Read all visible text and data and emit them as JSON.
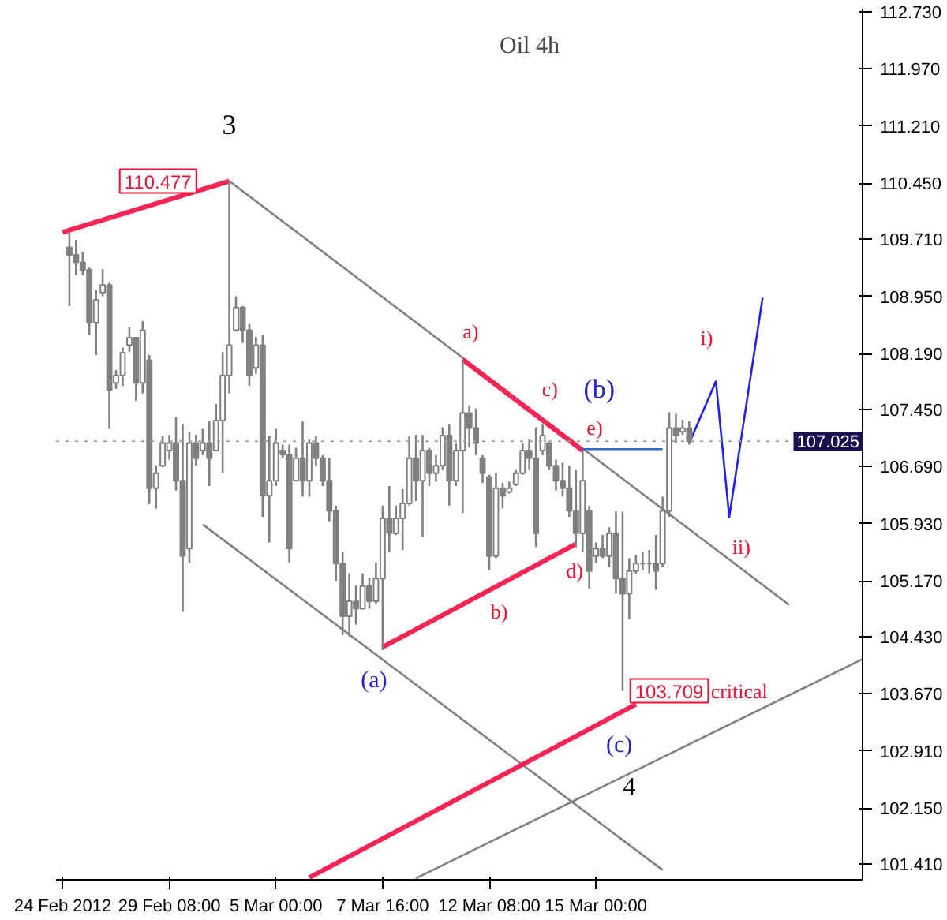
{
  "chart_data": {
    "type": "candlestick",
    "title": "Oil 4h",
    "categories": [
      "24 Feb 2012",
      null,
      null,
      null,
      null,
      null,
      null,
      null,
      null,
      null,
      null,
      null,
      null,
      null,
      null,
      null,
      "29 Feb 08:00",
      null,
      null,
      null,
      null,
      null,
      null,
      null,
      null,
      null,
      null,
      null,
      null,
      null,
      null,
      null,
      "5 Mar 00:00",
      null,
      null,
      null,
      null,
      null,
      null,
      null,
      null,
      null,
      null,
      null,
      null,
      null,
      null,
      null,
      "7 Mar 16:00",
      null,
      null,
      null,
      null,
      null,
      null,
      null,
      null,
      null,
      null,
      null,
      null,
      null,
      null,
      null,
      "12 Mar 08:00",
      null,
      null,
      null,
      null,
      null,
      null,
      null,
      null,
      null,
      null,
      null,
      null,
      null,
      null,
      null,
      "15 Mar 00:00",
      null,
      null,
      null,
      null,
      null,
      null,
      null,
      null,
      null,
      null,
      null,
      null,
      null,
      null,
      null,
      null,
      null,
      null,
      null,
      null,
      null,
      null,
      null,
      null,
      null,
      null,
      null,
      null,
      null,
      null,
      null,
      null,
      null,
      null,
      null,
      null,
      null,
      null,
      null,
      null
    ],
    "ylim": [
      101.2,
      112.77
    ],
    "yticks": [
      {
        "value": 112.73,
        "label": "112.730"
      },
      {
        "value": 111.97,
        "label": "111.970"
      },
      {
        "value": 111.21,
        "label": "111.210"
      },
      {
        "value": 110.45,
        "label": "110.450"
      },
      {
        "value": 109.71,
        "label": "109.710"
      },
      {
        "value": 108.95,
        "label": "108.950"
      },
      {
        "value": 108.19,
        "label": "108.190"
      },
      {
        "value": 107.45,
        "label": "107.450"
      },
      {
        "value": 106.69,
        "label": "106.690"
      },
      {
        "value": 105.93,
        "label": "105.930"
      },
      {
        "value": 105.17,
        "label": "105.170"
      },
      {
        "value": 104.43,
        "label": "104.430"
      },
      {
        "value": 103.67,
        "label": "103.670"
      },
      {
        "value": 102.91,
        "label": "102.910"
      },
      {
        "value": 102.15,
        "label": "102.150"
      },
      {
        "value": 101.41,
        "label": "101.410"
      }
    ],
    "grid": false,
    "ref_lines": [
      {
        "axis": "y",
        "value": 107.025,
        "label": "107.025",
        "color": "#a0a0a0",
        "line_style": "dotted"
      }
    ],
    "series": [
      {
        "type": "line",
        "color": "#ff2255",
        "values": [
          109.8,
          null,
          null,
          null,
          null,
          null,
          null,
          null,
          null,
          null,
          null,
          null,
          null,
          null,
          null,
          null,
          null,
          null,
          null,
          null,
          null,
          null,
          null,
          null,
          null,
          110.48,
          null,
          null,
          null,
          null,
          null,
          null,
          null,
          null,
          null,
          null,
          null,
          null,
          null,
          null,
          null,
          null,
          null,
          null,
          null,
          null,
          null,
          null,
          null,
          null,
          null,
          null,
          null,
          null,
          null,
          null,
          null,
          null,
          null,
          null,
          null,
          null,
          null,
          null,
          null,
          null,
          null,
          null,
          null,
          null,
          null,
          null,
          null,
          null,
          null,
          null,
          null,
          null,
          null,
          null,
          null,
          null,
          null,
          null,
          null,
          null,
          null,
          null,
          null,
          null,
          null,
          null,
          null,
          null,
          null,
          null,
          null,
          null,
          null,
          null,
          null,
          null,
          null,
          null,
          null,
          null,
          null,
          null,
          null,
          null,
          null,
          null,
          null,
          null,
          null,
          null,
          null,
          null,
          null,
          null,
          null
        ]
      },
      {
        "type": "line",
        "color": "#808080",
        "values": [
          null,
          null,
          null,
          null,
          null,
          null,
          null,
          null,
          null,
          null,
          null,
          null,
          null,
          null,
          null,
          null,
          null,
          null,
          null,
          null,
          null,
          null,
          null,
          null,
          null,
          110.48,
          null,
          null,
          null,
          null,
          null,
          null,
          null,
          null,
          null,
          null,
          null,
          null,
          null,
          null,
          null,
          null,
          null,
          null,
          null,
          null,
          null,
          null,
          null,
          null,
          null,
          null,
          null,
          null,
          null,
          null,
          null,
          null,
          null,
          null,
          null,
          null,
          null,
          null,
          null,
          null,
          null,
          null,
          null,
          null,
          null,
          null,
          null,
          null,
          null,
          null,
          null,
          null,
          null,
          null,
          null,
          null,
          null,
          null,
          null,
          null,
          null,
          null,
          null,
          null,
          null,
          null,
          null,
          null,
          null,
          null,
          null,
          null,
          null,
          null,
          null,
          null,
          null,
          null,
          null,
          null,
          null,
          null,
          null,
          104.85,
          null,
          null,
          null,
          null,
          null,
          null,
          null,
          null,
          null,
          null,
          null
        ]
      },
      {
        "type": "line",
        "color": "#ff2255",
        "values": [
          null,
          null,
          null,
          null,
          null,
          null,
          null,
          null,
          null,
          null,
          null,
          null,
          null,
          null,
          null,
          null,
          null,
          null,
          null,
          null,
          null,
          null,
          null,
          null,
          null,
          null,
          null,
          null,
          null,
          null,
          null,
          null,
          null,
          null,
          null,
          null,
          null,
          null,
          null,
          null,
          null,
          null,
          null,
          null,
          null,
          null,
          null,
          null,
          null,
          null,
          null,
          null,
          null,
          null,
          null,
          null,
          null,
          null,
          null,
          null,
          108.11,
          null,
          null,
          null,
          null,
          null,
          null,
          null,
          null,
          null,
          null,
          null,
          null,
          null,
          null,
          null,
          null,
          null,
          106.9,
          null,
          null,
          null,
          null,
          null,
          null,
          null,
          null,
          null,
          null,
          null,
          null,
          null,
          null,
          null,
          null,
          null,
          null,
          null,
          null,
          null,
          null,
          null,
          null,
          null,
          null,
          null,
          null,
          null,
          null,
          null,
          null,
          null,
          null,
          null,
          null,
          null,
          null,
          null,
          null,
          null,
          null
        ]
      },
      {
        "type": "line",
        "color": "#3366cc",
        "values": [
          null,
          null,
          null,
          null,
          null,
          null,
          null,
          null,
          null,
          null,
          null,
          null,
          null,
          null,
          null,
          null,
          null,
          null,
          null,
          null,
          null,
          null,
          null,
          null,
          null,
          null,
          null,
          null,
          null,
          null,
          null,
          null,
          null,
          null,
          null,
          null,
          null,
          null,
          null,
          null,
          null,
          null,
          null,
          null,
          null,
          null,
          null,
          null,
          null,
          null,
          null,
          null,
          null,
          null,
          null,
          null,
          null,
          null,
          null,
          null,
          null,
          null,
          null,
          null,
          null,
          null,
          null,
          null,
          null,
          null,
          null,
          null,
          null,
          null,
          null,
          null,
          null,
          null,
          106.92,
          null,
          null,
          null,
          null,
          null,
          null,
          null,
          null,
          null,
          null,
          null,
          106.92,
          null,
          null,
          null,
          null,
          null,
          null,
          null,
          null,
          null,
          null,
          null,
          null,
          null,
          null,
          null,
          null,
          null,
          null,
          null,
          null,
          null,
          null,
          null,
          null,
          null,
          null,
          null,
          null,
          null,
          null
        ]
      },
      {
        "type": "line",
        "color": "#808080",
        "values": [
          null,
          null,
          null,
          null,
          null,
          null,
          null,
          null,
          null,
          null,
          null,
          null,
          null,
          null,
          null,
          null,
          null,
          null,
          null,
          null,
          null,
          105.92,
          null,
          null,
          null,
          null,
          null,
          null,
          null,
          null,
          null,
          null,
          null,
          null,
          null,
          null,
          null,
          null,
          null,
          null,
          null,
          null,
          null,
          null,
          null,
          null,
          null,
          null,
          null,
          null,
          null,
          null,
          null,
          null,
          null,
          null,
          null,
          null,
          null,
          null,
          null,
          null,
          null,
          null,
          null,
          null,
          null,
          null,
          null,
          null,
          null,
          null,
          null,
          null,
          null,
          null,
          null,
          null,
          null,
          null,
          null,
          null,
          null,
          null,
          null,
          null,
          null,
          null,
          null,
          null,
          101.33,
          null,
          null,
          null,
          null,
          null,
          null,
          null,
          null,
          null,
          null,
          null,
          null,
          null,
          null,
          null,
          null,
          null,
          null,
          null,
          null,
          null,
          null,
          null,
          null,
          null,
          null,
          null,
          null,
          null,
          null
        ]
      },
      {
        "type": "line",
        "color": "#ff2255",
        "values": [
          null,
          null,
          null,
          null,
          null,
          null,
          null,
          null,
          null,
          null,
          null,
          null,
          null,
          null,
          null,
          null,
          null,
          null,
          null,
          null,
          null,
          null,
          null,
          null,
          null,
          null,
          null,
          null,
          null,
          null,
          null,
          null,
          null,
          null,
          null,
          null,
          null,
          null,
          null,
          null,
          null,
          null,
          null,
          null,
          null,
          null,
          null,
          null,
          104.29,
          null,
          null,
          null,
          null,
          null,
          null,
          null,
          null,
          null,
          null,
          null,
          null,
          null,
          null,
          null,
          null,
          null,
          null,
          null,
          null,
          null,
          null,
          null,
          null,
          null,
          null,
          null,
          null,
          105.66,
          null,
          null,
          null,
          null,
          null,
          null,
          null,
          null,
          null,
          null,
          null,
          null,
          null,
          null,
          null,
          null,
          null,
          null,
          null,
          null,
          null,
          null,
          null,
          null,
          null,
          null,
          null,
          null,
          null,
          null,
          null,
          null,
          null,
          null,
          null,
          null,
          null,
          null,
          null,
          null,
          null,
          null,
          null
        ]
      },
      {
        "type": "line",
        "color": "#ff2255",
        "values": [
          null,
          null,
          null,
          null,
          null,
          null,
          null,
          null,
          null,
          null,
          null,
          null,
          null,
          null,
          null,
          null,
          null,
          null,
          null,
          null,
          null,
          null,
          null,
          null,
          null,
          null,
          null,
          null,
          null,
          null,
          null,
          null,
          null,
          null,
          null,
          null,
          null,
          101.23,
          null,
          null,
          null,
          null,
          null,
          null,
          null,
          null,
          null,
          null,
          null,
          null,
          null,
          null,
          null,
          null,
          null,
          null,
          null,
          null,
          null,
          null,
          null,
          null,
          null,
          null,
          null,
          null,
          null,
          null,
          null,
          null,
          null,
          null,
          null,
          null,
          null,
          null,
          null,
          null,
          null,
          null,
          null,
          null,
          null,
          null,
          null,
          null,
          103.53,
          null,
          null,
          null,
          null,
          null,
          null,
          null,
          null,
          null,
          null,
          null,
          null,
          null,
          null,
          null,
          null,
          null,
          null,
          null,
          null,
          null,
          null,
          null,
          null,
          null,
          null,
          null,
          null,
          null,
          null,
          null,
          null,
          null,
          null
        ]
      },
      {
        "type": "line",
        "color": "#808080",
        "values": [
          null,
          null,
          null,
          null,
          null,
          null,
          null,
          null,
          null,
          null,
          null,
          null,
          null,
          null,
          null,
          null,
          null,
          null,
          null,
          null,
          null,
          null,
          null,
          null,
          null,
          null,
          null,
          null,
          null,
          null,
          null,
          null,
          null,
          null,
          null,
          null,
          null,
          null,
          null,
          null,
          null,
          null,
          null,
          null,
          null,
          null,
          null,
          null,
          null,
          null,
          null,
          null,
          null,
          101.22,
          null,
          null,
          null,
          null,
          null,
          null,
          null,
          null,
          null,
          null,
          null,
          null,
          null,
          null,
          null,
          null,
          null,
          null,
          null,
          null,
          null,
          null,
          null,
          null,
          null,
          null,
          null,
          null,
          null,
          null,
          null,
          null,
          null,
          null,
          null,
          null,
          null,
          null,
          null,
          null,
          null,
          null,
          null,
          null,
          null,
          null,
          null,
          null,
          null,
          null,
          null,
          null,
          null,
          null,
          null,
          null,
          null,
          null,
          null,
          null,
          null,
          null,
          null,
          null,
          null,
          null,
          104.13
        ]
      },
      {
        "type": "line",
        "color": "#2222ee",
        "values": [
          null,
          null,
          null,
          null,
          null,
          null,
          null,
          null,
          null,
          null,
          null,
          null,
          null,
          null,
          null,
          null,
          null,
          null,
          null,
          null,
          null,
          null,
          null,
          null,
          null,
          null,
          null,
          null,
          null,
          null,
          null,
          null,
          null,
          null,
          null,
          null,
          null,
          null,
          null,
          null,
          null,
          null,
          null,
          null,
          null,
          null,
          null,
          null,
          null,
          null,
          null,
          null,
          null,
          null,
          null,
          null,
          null,
          null,
          null,
          null,
          null,
          null,
          null,
          null,
          null,
          null,
          null,
          null,
          null,
          null,
          null,
          null,
          null,
          null,
          null,
          null,
          null,
          null,
          null,
          null,
          null,
          null,
          null,
          null,
          null,
          null,
          null,
          null,
          null,
          null,
          null,
          null,
          null,
          null,
          107.0,
          null,
          null,
          null,
          107.82,
          null,
          106.02,
          null,
          null,
          null,
          null,
          108.93,
          null,
          null,
          null,
          null,
          null,
          null,
          null,
          null,
          null,
          null,
          null,
          null,
          null,
          null,
          null
        ]
      },
      {
        "color": "#808080",
        "ohlc": [
          null,
          [
            109.6,
            109.8,
            108.82,
            109.5
          ],
          [
            109.5,
            109.7,
            109.23,
            109.4
          ],
          [
            109.4,
            109.54,
            109.23,
            109.3
          ],
          [
            109.3,
            109.33,
            108.44,
            108.6
          ],
          [
            108.6,
            109.03,
            108.17,
            108.9
          ],
          [
            109.0,
            109.31,
            108.95,
            109.1
          ],
          [
            109.1,
            109.13,
            107.19,
            107.7
          ],
          [
            107.8,
            107.97,
            107.72,
            107.9
          ],
          [
            107.9,
            108.27,
            107.76,
            108.2
          ],
          [
            108.3,
            108.54,
            108.21,
            108.4
          ],
          [
            108.4,
            108.41,
            107.56,
            107.8
          ],
          [
            107.8,
            108.62,
            107.66,
            108.5
          ],
          [
            108.1,
            108.17,
            106.19,
            106.4
          ],
          [
            106.4,
            106.7,
            106.13,
            106.6
          ],
          [
            106.7,
            107.09,
            106.68,
            107.0
          ],
          [
            106.9,
            107.11,
            106.78,
            107.0
          ],
          [
            107.0,
            107.35,
            106.37,
            106.5
          ],
          [
            106.5,
            107.25,
            104.76,
            105.5
          ],
          [
            105.6,
            107.15,
            105.41,
            107.0
          ],
          [
            107.0,
            107.11,
            106.7,
            106.8
          ],
          [
            106.9,
            107.19,
            106.84,
            107.0
          ],
          [
            107.0,
            107.29,
            106.43,
            106.8
          ],
          [
            106.9,
            107.52,
            106.9,
            107.3
          ],
          [
            107.3,
            108.21,
            106.6,
            107.9
          ],
          [
            107.9,
            110.477,
            107.66,
            108.3
          ],
          [
            108.5,
            108.95,
            108.48,
            108.8
          ],
          [
            108.8,
            108.82,
            108.33,
            108.5
          ],
          [
            108.5,
            108.58,
            107.76,
            107.9
          ],
          [
            108.0,
            108.41,
            107.92,
            108.3
          ],
          [
            108.3,
            108.44,
            106.02,
            106.3
          ],
          [
            106.3,
            107.09,
            105.68,
            106.5
          ],
          [
            106.5,
            107.19,
            106.43,
            107.0
          ],
          [
            106.9,
            106.98,
            106.8,
            106.85
          ],
          [
            106.85,
            106.98,
            105.41,
            105.6
          ],
          [
            106.5,
            106.94,
            106.49,
            106.8
          ],
          [
            106.8,
            107.29,
            106.29,
            106.5
          ],
          [
            106.5,
            107.05,
            106.29,
            107.0
          ],
          [
            107.0,
            107.09,
            106.7,
            106.8
          ],
          [
            106.8,
            106.84,
            106.43,
            106.5
          ],
          [
            106.5,
            106.8,
            105.96,
            106.1
          ],
          [
            106.1,
            106.17,
            105.17,
            105.4
          ],
          [
            105.4,
            105.55,
            104.45,
            104.7
          ],
          [
            104.7,
            105.27,
            104.43,
            104.9
          ],
          [
            104.9,
            105.11,
            104.59,
            104.8
          ],
          [
            104.8,
            105.27,
            104.8,
            105.1
          ],
          [
            105.1,
            105.21,
            104.8,
            104.9
          ],
          [
            104.9,
            105.41,
            104.86,
            105.2
          ],
          [
            105.2,
            106.17,
            104.25,
            106.0
          ],
          [
            106.0,
            106.43,
            105.55,
            105.8
          ],
          [
            105.8,
            106.17,
            105.78,
            106.0
          ],
          [
            106.0,
            106.39,
            105.58,
            106.2
          ],
          [
            106.2,
            107.09,
            106.17,
            106.8
          ],
          [
            106.8,
            107.11,
            106.23,
            106.5
          ],
          [
            106.5,
            107.11,
            105.76,
            106.9
          ],
          [
            106.9,
            106.94,
            106.43,
            106.6
          ],
          [
            106.6,
            106.84,
            106.49,
            106.7
          ],
          [
            106.7,
            107.21,
            106.64,
            107.1
          ],
          [
            107.1,
            107.25,
            106.17,
            106.5
          ],
          [
            106.5,
            107.0,
            106.43,
            106.9
          ],
          [
            106.9,
            108.11,
            106.07,
            107.4
          ],
          [
            107.4,
            107.5,
            106.94,
            107.2
          ],
          [
            107.2,
            107.46,
            106.84,
            107.0
          ],
          [
            106.8,
            106.84,
            106.47,
            106.6
          ],
          [
            106.55,
            106.58,
            105.31,
            105.5
          ],
          [
            105.5,
            106.6,
            105.47,
            106.4
          ],
          [
            106.4,
            106.47,
            106.13,
            106.3
          ],
          [
            106.35,
            106.49,
            106.33,
            106.4
          ],
          [
            106.45,
            106.64,
            106.43,
            106.6
          ],
          [
            106.6,
            107.0,
            106.58,
            106.9
          ],
          [
            106.9,
            107.05,
            106.64,
            106.8
          ],
          [
            106.8,
            107.21,
            105.62,
            105.8
          ],
          [
            106.9,
            107.25,
            106.84,
            107.1
          ],
          [
            107.0,
            107.0,
            106.64,
            106.7
          ],
          [
            106.7,
            106.78,
            106.37,
            106.5
          ],
          [
            106.5,
            106.74,
            106.29,
            106.4
          ],
          [
            106.4,
            106.7,
            106.02,
            106.1
          ],
          [
            106.1,
            106.64,
            105.62,
            105.8
          ],
          [
            105.8,
            106.9,
            105.55,
            106.5
          ],
          [
            106.1,
            106.17,
            105.07,
            105.3
          ],
          [
            105.5,
            105.68,
            105.41,
            105.6
          ],
          [
            105.6,
            105.78,
            105.47,
            105.5
          ],
          [
            105.5,
            105.88,
            105.35,
            105.8
          ],
          [
            105.8,
            106.09,
            105.0,
            105.2
          ],
          [
            105.2,
            106.09,
            103.709,
            105.0
          ],
          [
            105.0,
            105.47,
            104.66,
            105.3
          ],
          [
            105.3,
            105.51,
            105.27,
            105.4
          ],
          [
            105.4,
            105.55,
            105.31,
            105.4
          ],
          [
            105.4,
            105.58,
            105.27,
            105.4
          ],
          [
            105.4,
            105.78,
            105.05,
            105.3
          ],
          [
            105.4,
            106.29,
            105.35,
            106.1
          ],
          [
            106.1,
            107.41,
            106.02,
            107.2
          ],
          [
            107.2,
            107.39,
            107.0,
            107.1
          ],
          [
            107.15,
            107.31,
            107.11,
            107.2
          ],
          [
            107.2,
            107.29,
            106.98,
            107.025
          ],
          null,
          null,
          null,
          null,
          null,
          null,
          null,
          null,
          null,
          null,
          null,
          null,
          null,
          null,
          null,
          null,
          null,
          null,
          null,
          null,
          null,
          null,
          null,
          null,
          null,
          null
        ]
      }
    ],
    "annotations": [
      "3",
      "110.477",
      "a)",
      "b)",
      "c)",
      "d)",
      "e)",
      "(b)",
      "(a)",
      "(c)",
      "4",
      "i)",
      "ii)",
      "103.709",
      "critical"
    ]
  }
}
